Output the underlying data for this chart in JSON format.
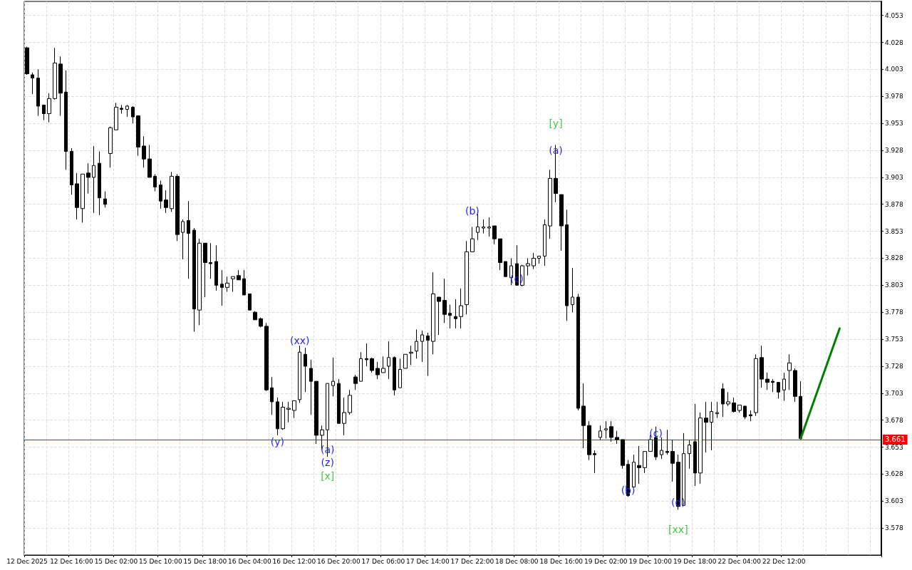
{
  "chart_data": {
    "type": "candlestick",
    "categories": [
      "12 Dec 2025",
      null,
      null,
      null,
      null,
      null,
      null,
      null,
      "12 Dec 16:00",
      null,
      null,
      null,
      null,
      null,
      null,
      null,
      "15 Dec 02:00",
      null,
      null,
      null,
      null,
      null,
      null,
      null,
      "15 Dec 10:00",
      null,
      null,
      null,
      null,
      null,
      null,
      null,
      "15 Dec 18:00",
      null,
      null,
      null,
      null,
      null,
      null,
      null,
      "16 Dec 04:00",
      null,
      null,
      null,
      null,
      null,
      null,
      null,
      "16 Dec 12:00",
      null,
      null,
      null,
      null,
      null,
      null,
      null,
      "16 Dec 20:00",
      null,
      null,
      null,
      null,
      null,
      null,
      null,
      "17 Dec 06:00",
      null,
      null,
      null,
      null,
      null,
      null,
      null,
      "17 Dec 14:00",
      null,
      null,
      null,
      null,
      null,
      null,
      null,
      "17 Dec 22:00",
      null,
      null,
      null,
      null,
      null,
      null,
      null,
      "18 Dec 08:00",
      null,
      null,
      null,
      null,
      null,
      null,
      null,
      "18 Dec 16:00",
      null,
      null,
      null,
      null,
      null,
      null,
      null,
      "19 Dec 02:00",
      null,
      null,
      null,
      null,
      null,
      null,
      null,
      "19 Dec 10:00",
      null,
      null,
      null,
      null,
      null,
      null,
      null,
      "19 Dec 18:00",
      null,
      null,
      null,
      null,
      null,
      null,
      null,
      "22 Dec 04:00",
      null,
      null,
      null,
      null,
      null,
      null,
      null,
      "22 Dec 12:00",
      null,
      null,
      null,
      null,
      null,
      null,
      null,
      null,
      null,
      null,
      null,
      null,
      null,
      null,
      null,
      null,
      null
    ],
    "series": [
      {
        "type": "line",
        "color": "#008000",
        "values": [
          null,
          null,
          null,
          null,
          null,
          null,
          null,
          null,
          null,
          null,
          null,
          null,
          null,
          null,
          null,
          null,
          null,
          null,
          null,
          null,
          null,
          null,
          null,
          null,
          null,
          null,
          null,
          null,
          null,
          null,
          null,
          null,
          null,
          null,
          null,
          null,
          null,
          null,
          null,
          null,
          null,
          null,
          null,
          null,
          null,
          null,
          null,
          null,
          null,
          null,
          null,
          null,
          null,
          null,
          null,
          null,
          null,
          null,
          null,
          null,
          null,
          null,
          null,
          null,
          null,
          null,
          null,
          null,
          null,
          null,
          null,
          null,
          null,
          null,
          null,
          null,
          null,
          null,
          null,
          null,
          null,
          null,
          null,
          null,
          null,
          null,
          null,
          null,
          null,
          null,
          null,
          null,
          null,
          null,
          null,
          null,
          null,
          null,
          null,
          null,
          null,
          null,
          null,
          null,
          null,
          null,
          null,
          null,
          null,
          null,
          null,
          null,
          null,
          null,
          null,
          null,
          null,
          null,
          null,
          null,
          null,
          null,
          null,
          null,
          null,
          null,
          null,
          null,
          null,
          null,
          null,
          null,
          null,
          null,
          null,
          null,
          null,
          null,
          null,
          3.661,
          null,
          null,
          null,
          null,
          null,
          null,
          3.763,
          null,
          null,
          null,
          null,
          null,
          null,
          null
        ]
      }
    ],
    "ohlc": [
      [
        4.023,
        4.024,
        3.998,
        3.999
      ],
      [
        3.998,
        4.0,
        3.98,
        3.995
      ],
      [
        3.995,
        4.003,
        3.96,
        3.969
      ],
      [
        3.97,
        3.97,
        3.956,
        3.962
      ],
      [
        3.962,
        3.981,
        3.954,
        3.976
      ],
      [
        3.976,
        4.023,
        3.975,
        4.009
      ],
      [
        4.008,
        4.015,
        3.96,
        3.981
      ],
      [
        3.982,
        4.002,
        3.91,
        3.927
      ],
      [
        3.927,
        3.93,
        3.887,
        3.896
      ],
      [
        3.897,
        3.907,
        3.864,
        3.875
      ],
      [
        3.874,
        3.906,
        3.861,
        3.906
      ],
      [
        3.907,
        3.916,
        3.888,
        3.903
      ],
      [
        3.903,
        3.932,
        3.87,
        3.914
      ],
      [
        3.916,
        3.927,
        3.868,
        3.884
      ],
      [
        3.883,
        3.89,
        3.875,
        3.878
      ],
      [
        3.925,
        3.95,
        3.912,
        3.949
      ],
      [
        3.947,
        3.972,
        3.947,
        3.968
      ],
      [
        3.967,
        3.97,
        3.962,
        3.966
      ],
      [
        3.966,
        3.97,
        3.959,
        3.969
      ],
      [
        3.968,
        3.969,
        3.953,
        3.959
      ],
      [
        3.96,
        3.96,
        3.923,
        3.931
      ],
      [
        3.932,
        3.941,
        3.912,
        3.92
      ],
      [
        3.92,
        3.933,
        3.903,
        3.903
      ],
      [
        3.904,
        3.906,
        3.89,
        3.894
      ],
      [
        3.896,
        3.9,
        3.874,
        3.881
      ],
      [
        3.882,
        3.891,
        3.87,
        3.875
      ],
      [
        3.874,
        3.908,
        3.871,
        3.904
      ],
      [
        3.904,
        3.906,
        3.844,
        3.85
      ],
      [
        3.852,
        3.864,
        3.827,
        3.862
      ],
      [
        3.863,
        3.881,
        3.809,
        3.851
      ],
      [
        3.854,
        3.856,
        3.76,
        3.781
      ],
      [
        3.78,
        3.846,
        3.766,
        3.842
      ],
      [
        3.842,
        3.842,
        3.792,
        3.824
      ],
      [
        3.824,
        3.842,
        3.809,
        3.823
      ],
      [
        3.825,
        3.84,
        3.798,
        3.803
      ],
      [
        3.804,
        3.817,
        3.784,
        3.801
      ],
      [
        3.801,
        3.811,
        3.797,
        3.805
      ],
      [
        3.809,
        3.811,
        3.797,
        3.811
      ],
      [
        3.812,
        3.817,
        3.808,
        3.808
      ],
      [
        3.809,
        3.817,
        3.794,
        3.794
      ],
      [
        3.795,
        3.795,
        3.78,
        3.78
      ],
      [
        3.778,
        3.779,
        3.771,
        3.771
      ],
      [
        3.772,
        3.773,
        3.764,
        3.765
      ],
      [
        3.765,
        3.768,
        3.705,
        3.706
      ],
      [
        3.708,
        3.718,
        3.683,
        3.695
      ],
      [
        3.695,
        3.699,
        3.664,
        3.67
      ],
      [
        3.67,
        3.695,
        3.669,
        3.69
      ],
      [
        3.688,
        3.695,
        3.676,
        3.689
      ],
      [
        3.687,
        3.696,
        3.68,
        3.696
      ],
      [
        3.697,
        3.747,
        3.694,
        3.741
      ],
      [
        3.739,
        3.745,
        3.704,
        3.728
      ],
      [
        3.726,
        3.734,
        3.683,
        3.714
      ],
      [
        3.714,
        3.714,
        3.656,
        3.664
      ],
      [
        3.664,
        3.673,
        3.651,
        3.669
      ],
      [
        3.669,
        3.712,
        3.644,
        3.712
      ],
      [
        3.71,
        3.736,
        3.7,
        3.714
      ],
      [
        3.712,
        3.716,
        3.675,
        3.675
      ],
      [
        3.675,
        3.699,
        3.664,
        3.685
      ],
      [
        3.685,
        3.706,
        3.683,
        3.701
      ],
      [
        3.718,
        3.72,
        3.706,
        3.712
      ],
      [
        3.714,
        3.741,
        3.714,
        3.735
      ],
      [
        3.735,
        3.749,
        3.728,
        3.734
      ],
      [
        3.735,
        3.736,
        3.722,
        3.724
      ],
      [
        3.726,
        3.732,
        3.716,
        3.72
      ],
      [
        3.722,
        3.737,
        3.722,
        3.726
      ],
      [
        3.728,
        3.751,
        3.716,
        3.736
      ],
      [
        3.736,
        3.737,
        3.701,
        3.706
      ],
      [
        3.708,
        3.735,
        3.708,
        3.725
      ],
      [
        3.726,
        3.739,
        3.726,
        3.739
      ],
      [
        3.74,
        3.747,
        3.729,
        3.741
      ],
      [
        3.742,
        3.762,
        3.735,
        3.751
      ],
      [
        3.751,
        3.761,
        3.732,
        3.757
      ],
      [
        3.756,
        3.759,
        3.719,
        3.752
      ],
      [
        3.751,
        3.815,
        3.739,
        3.795
      ],
      [
        3.792,
        3.792,
        3.757,
        3.788
      ],
      [
        3.789,
        3.809,
        3.768,
        3.776
      ],
      [
        3.777,
        3.785,
        3.763,
        3.775
      ],
      [
        3.774,
        3.79,
        3.763,
        3.772
      ],
      [
        3.774,
        3.8,
        3.763,
        3.784
      ],
      [
        3.785,
        3.844,
        3.776,
        3.834
      ],
      [
        3.834,
        3.857,
        3.834,
        3.846
      ],
      [
        3.852,
        3.869,
        3.845,
        3.857
      ],
      [
        3.856,
        3.864,
        3.851,
        3.857
      ],
      [
        3.856,
        3.866,
        3.848,
        3.857
      ],
      [
        3.858,
        3.858,
        3.841,
        3.846
      ],
      [
        3.846,
        3.846,
        3.817,
        3.824
      ],
      [
        3.825,
        3.825,
        3.811,
        3.811
      ],
      [
        3.81,
        3.828,
        3.803,
        3.821
      ],
      [
        3.823,
        3.84,
        3.803,
        3.803
      ],
      [
        3.803,
        3.822,
        3.802,
        3.821
      ],
      [
        3.821,
        3.828,
        3.812,
        3.823
      ],
      [
        3.821,
        3.833,
        3.818,
        3.828
      ],
      [
        3.828,
        3.83,
        3.823,
        3.83
      ],
      [
        3.83,
        3.864,
        3.821,
        3.859
      ],
      [
        3.858,
        3.91,
        3.846,
        3.902
      ],
      [
        3.902,
        3.933,
        3.88,
        3.888
      ],
      [
        3.887,
        3.887,
        3.835,
        3.858
      ],
      [
        3.859,
        3.873,
        3.77,
        3.784
      ],
      [
        3.785,
        3.819,
        3.778,
        3.792
      ],
      [
        3.792,
        3.795,
        3.687,
        3.689
      ],
      [
        3.691,
        3.712,
        3.652,
        3.673
      ],
      [
        3.673,
        3.677,
        3.641,
        3.646
      ],
      [
        3.647,
        3.65,
        3.629,
        3.646
      ],
      [
        3.662,
        3.673,
        3.66,
        3.668
      ],
      [
        3.669,
        3.677,
        3.661,
        3.67
      ],
      [
        3.672,
        3.677,
        3.658,
        3.662
      ],
      [
        3.662,
        3.668,
        3.656,
        3.66
      ],
      [
        3.66,
        3.66,
        3.633,
        3.636
      ],
      [
        3.637,
        3.641,
        3.607,
        3.608
      ],
      [
        3.616,
        3.646,
        3.616,
        3.639
      ],
      [
        3.636,
        3.654,
        3.619,
        3.634
      ],
      [
        3.634,
        3.649,
        3.629,
        3.649
      ],
      [
        3.649,
        3.664,
        3.649,
        3.66
      ],
      [
        3.662,
        3.672,
        3.641,
        3.644
      ],
      [
        3.646,
        3.662,
        3.642,
        3.65
      ],
      [
        3.649,
        3.669,
        3.646,
        3.648
      ],
      [
        3.649,
        3.66,
        3.621,
        3.638
      ],
      [
        3.639,
        3.646,
        3.595,
        3.598
      ],
      [
        3.599,
        3.666,
        3.599,
        3.647
      ],
      [
        3.647,
        3.66,
        3.633,
        3.655
      ],
      [
        3.658,
        3.693,
        3.617,
        3.629
      ],
      [
        3.629,
        3.685,
        3.619,
        3.68
      ],
      [
        3.68,
        3.695,
        3.648,
        3.676
      ],
      [
        3.676,
        3.695,
        3.65,
        3.686
      ],
      [
        3.684,
        3.695,
        3.68,
        3.685
      ],
      [
        3.707,
        3.712,
        3.681,
        3.693
      ],
      [
        3.693,
        3.704,
        3.691,
        3.695
      ],
      [
        3.694,
        3.699,
        3.685,
        3.686
      ],
      [
        3.687,
        3.692,
        3.685,
        3.692
      ],
      [
        3.691,
        3.691,
        3.679,
        3.681
      ],
      [
        3.683,
        3.687,
        3.677,
        3.682
      ],
      [
        3.685,
        3.739,
        3.682,
        3.735
      ],
      [
        3.736,
        3.747,
        3.708,
        3.716
      ],
      [
        3.716,
        3.722,
        3.706,
        3.713
      ],
      [
        3.714,
        3.716,
        3.704,
        3.713
      ],
      [
        3.713,
        3.713,
        3.698,
        3.704
      ],
      [
        3.706,
        3.722,
        3.696,
        3.716
      ],
      [
        3.724,
        3.739,
        3.706,
        3.731
      ],
      [
        3.724,
        3.726,
        3.695,
        3.7
      ],
      [
        3.7,
        3.714,
        3.661,
        3.661
      ],
      null,
      null,
      null,
      null,
      null,
      null,
      null,
      null,
      null,
      null,
      null,
      null,
      null,
      null
    ],
    "marker": "none",
    "ylim": [
      3.553,
      4.066
    ],
    "yticks": [
      3.578,
      3.603,
      3.628,
      3.653,
      3.678,
      3.703,
      3.728,
      3.753,
      3.778,
      3.803,
      3.828,
      3.853,
      3.878,
      3.903,
      3.928,
      3.953,
      3.978,
      4.003,
      4.028,
      4.053
    ],
    "grid": true,
    "ref_lines": [
      {
        "axis": "y",
        "value": 3.661,
        "label": "3.661",
        "color": "#ff0000"
      }
    ],
    "annotations": [
      "(y)",
      "(xx)",
      "(a)",
      "(z)",
      "[x]",
      "(b)",
      "(c)",
      "[y]",
      "(a)",
      "(b)",
      "(c)",
      "(d)",
      "[xx]"
    ]
  }
}
